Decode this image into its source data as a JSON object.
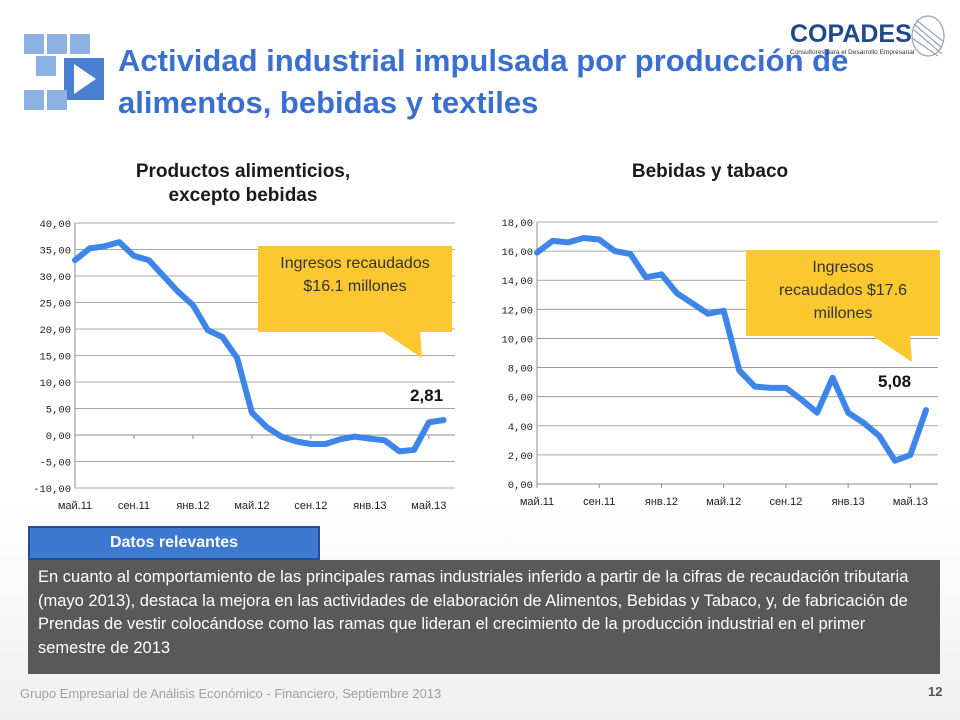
{
  "slide": {
    "title": "Actividad industrial impulsada por producción de alimentos, bebidas y textiles",
    "logo_text": "COPADES",
    "logo_tagline": "Consultores para el Desarrollo Empresarial",
    "datos_tab": "Datos relevantes",
    "summary": "En cuanto al comportamiento de las principales ramas industriales inferido a partir de la cifras de recaudación tributaria (mayo 2013), destaca la mejora en las actividades de elaboración de Alimentos, Bebidas y Tabaco, y, de fabricación de Prendas de vestir  colocándose como las ramas que lideran el crecimiento de la producción industrial en el primer semestre de 2013",
    "footer": "Grupo Empresarial de Análisis Económico - Financiero, Septiembre 2013",
    "page_number": "12",
    "colors": {
      "title": "#3b6fcf",
      "series": "#3d85e8",
      "callout": "#fbc92f",
      "tab": "#3d79cf",
      "summary_bg": "#595959"
    }
  },
  "callouts": {
    "alimentos": "Ingresos recaudados $16.1 millones",
    "bebidas": "Ingresos recaudados $17.6 millones"
  },
  "chart_data": [
    {
      "type": "line",
      "title": "Productos alimenticios, excepto bebidas",
      "xlabel": "",
      "ylabel": "",
      "ylim": [
        -10,
        40
      ],
      "yticks": [
        "40,00",
        "35,00",
        "30,00",
        "25,00",
        "20,00",
        "15,00",
        "10,00",
        "5,00",
        "0,00",
        "-5,00",
        "-10,00"
      ],
      "xtick_labels": [
        "май.11",
        "сен.11",
        "янв.12",
        "май.12",
        "сен.12",
        "янв.13",
        "май.13"
      ],
      "grid": true,
      "last_value_label": "2,81",
      "series": [
        {
          "values": [
            33.0,
            35.2,
            35.6,
            36.4,
            33.8,
            33.0,
            30.0,
            27.0,
            24.5,
            19.8,
            18.5,
            14.5,
            4.2,
            1.5,
            -0.3,
            -1.2,
            -1.7,
            -1.7,
            -0.8,
            -0.3,
            -0.7,
            -1.0,
            -3.1,
            -2.8,
            2.4,
            2.81
          ]
        }
      ]
    },
    {
      "type": "line",
      "title": "Bebidas y tabaco",
      "xlabel": "",
      "ylabel": "",
      "ylim": [
        0,
        18
      ],
      "yticks": [
        "18,00",
        "16,00",
        "14,00",
        "12,00",
        "10,00",
        "8,00",
        "6,00",
        "4,00",
        "2,00",
        "0,00"
      ],
      "xtick_labels": [
        "май.11",
        "сен.11",
        "янв.12",
        "май.12",
        "сен.12",
        "янв.13",
        "май.13"
      ],
      "grid": true,
      "last_value_label": "5,08",
      "series": [
        {
          "values": [
            15.9,
            16.7,
            16.6,
            16.9,
            16.8,
            16.0,
            15.8,
            14.2,
            14.4,
            13.1,
            12.4,
            11.7,
            11.9,
            7.8,
            6.7,
            6.6,
            6.6,
            5.8,
            4.9,
            7.3,
            4.9,
            4.2,
            3.3,
            1.6,
            2.0,
            5.08
          ]
        }
      ]
    }
  ]
}
